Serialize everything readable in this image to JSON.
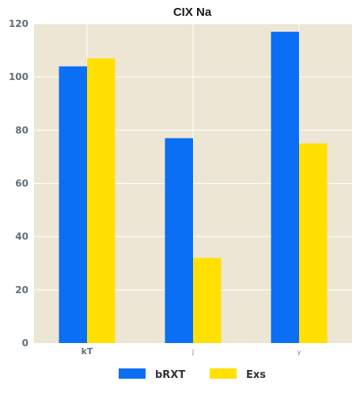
{
  "chart_data": {
    "type": "bar",
    "title": "CIX Na",
    "xlabel": "",
    "ylabel": "",
    "categories": [
      "kT",
      "J",
      "y"
    ],
    "series": [
      {
        "name": "bRXT",
        "values": [
          104,
          77,
          117
        ],
        "color": "#0a6ff5"
      },
      {
        "name": "Exs",
        "values": [
          107,
          32,
          75
        ],
        "color": "#ffe000"
      }
    ],
    "ylim": [
      0,
      120
    ],
    "yticks": [
      0,
      20,
      40,
      60,
      80,
      100,
      120
    ],
    "grid": true,
    "legend_position": "bottom-center",
    "background_color": "#ede6d4"
  }
}
